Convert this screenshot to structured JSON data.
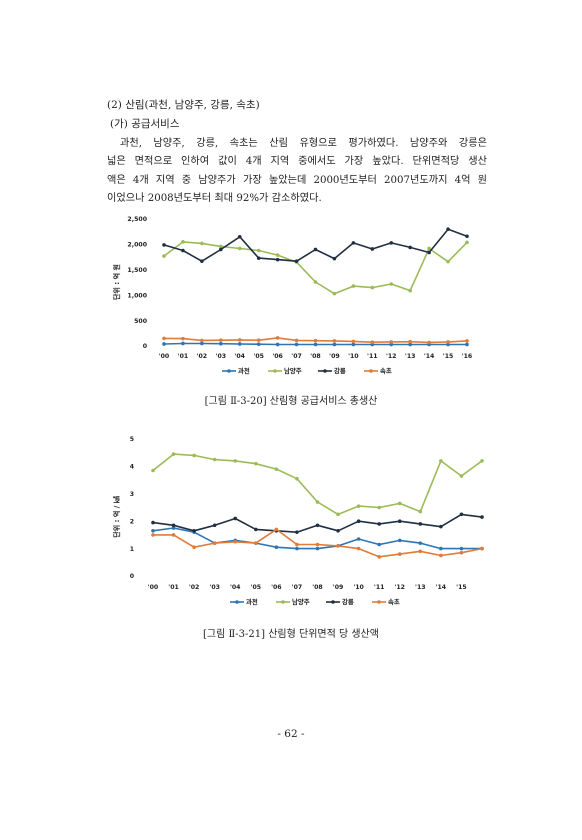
{
  "section": {
    "heading": "(2) 산림(과천, 남양주, 강릉, 속초)",
    "subheading": "(가) 공급서비스",
    "paragraph_lines": [
      "과천, 남양주, 강릉, 속초는 산림 유형으로 평가하였다. 남양주와 강릉은",
      "넓은 면적으로 인하여 값이 4개 지역 중에서도 가장 높았다. 단위면적당 생산",
      "액은 4개 지역 중 남양주가 가장 높았는데 2000년도부터 2007년도까지 4억 원",
      "이었으나 2008년도부터 최대 92%가 감소하였다."
    ]
  },
  "colors": {
    "과천": "#2e75b6",
    "남양주": "#9bbb59",
    "강릉": "#203040",
    "속초": "#e07b39"
  },
  "chart_data": [
    {
      "type": "line",
      "caption": "[그림 Ⅱ-3-20] 산림형 공급서비스 총생산",
      "ylabel": "단위 : 억 원",
      "ylim": [
        0,
        2500
      ],
      "yticks": [
        "0",
        "500",
        "1,000",
        "1,500",
        "2,000",
        "2,500"
      ],
      "ytick_values": [
        0,
        500,
        1000,
        1500,
        2000,
        2500
      ],
      "categories": [
        "'00",
        "'01",
        "'02",
        "'03",
        "'04",
        "'05",
        "'06",
        "'07",
        "'08",
        "'09",
        "'10",
        "'11",
        "'12",
        "'13",
        "'14",
        "'15",
        "'16"
      ],
      "legend": "bottom",
      "series": [
        {
          "name": "과천",
          "values": [
            40,
            50,
            50,
            45,
            40,
            35,
            30,
            30,
            30,
            30,
            30,
            30,
            30,
            30,
            30,
            30,
            30
          ]
        },
        {
          "name": "남양주",
          "values": [
            1770,
            2050,
            2020,
            1960,
            1920,
            1880,
            1790,
            1650,
            1260,
            1030,
            1180,
            1150,
            1220,
            1090,
            1920,
            1660,
            2040
          ]
        },
        {
          "name": "강릉",
          "values": [
            1990,
            1880,
            1670,
            1900,
            2150,
            1730,
            1700,
            1670,
            1900,
            1720,
            2030,
            1910,
            2030,
            1940,
            1840,
            2300,
            2160
          ]
        },
        {
          "name": "속초",
          "values": [
            150,
            145,
            110,
            115,
            120,
            115,
            160,
            110,
            105,
            100,
            90,
            75,
            80,
            85,
            70,
            80,
            100
          ]
        }
      ]
    },
    {
      "type": "line",
      "caption": "[그림 Ⅱ-3-21] 산림형 단위면적 당 생산액",
      "ylabel": "단위 : 억 / ㎢",
      "ylim": [
        0,
        5
      ],
      "yticks": [
        "0",
        "1",
        "2",
        "3",
        "4",
        "5"
      ],
      "ytick_values": [
        0,
        1,
        2,
        3,
        4,
        5
      ],
      "categories": [
        "'00",
        "'01",
        "'02",
        "'03",
        "'04",
        "'05",
        "'06",
        "'07",
        "'08",
        "'09",
        "'10",
        "'11",
        "'12",
        "'13",
        "'14",
        "'15",
        ""
      ],
      "legend": "bottom",
      "series": [
        {
          "name": "과천",
          "values": [
            1.65,
            1.75,
            1.6,
            1.2,
            1.3,
            1.2,
            1.05,
            1.0,
            1.0,
            1.1,
            1.35,
            1.15,
            1.3,
            1.2,
            1.0,
            1.0,
            1.0
          ]
        },
        {
          "name": "남양주",
          "values": [
            3.85,
            4.45,
            4.4,
            4.25,
            4.2,
            4.1,
            3.9,
            3.55,
            2.7,
            2.25,
            2.55,
            2.5,
            2.65,
            2.35,
            4.2,
            3.65,
            4.2
          ]
        },
        {
          "name": "강릉",
          "values": [
            1.95,
            1.85,
            1.65,
            1.85,
            2.1,
            1.7,
            1.65,
            1.6,
            1.85,
            1.65,
            2.0,
            1.9,
            2.0,
            1.9,
            1.8,
            2.25,
            2.15
          ]
        },
        {
          "name": "속초",
          "values": [
            1.5,
            1.5,
            1.05,
            1.2,
            1.25,
            1.2,
            1.7,
            1.15,
            1.15,
            1.1,
            1.0,
            0.7,
            0.8,
            0.9,
            0.75,
            0.85,
            1.0
          ]
        }
      ]
    }
  ],
  "page_number": "- 62 -"
}
